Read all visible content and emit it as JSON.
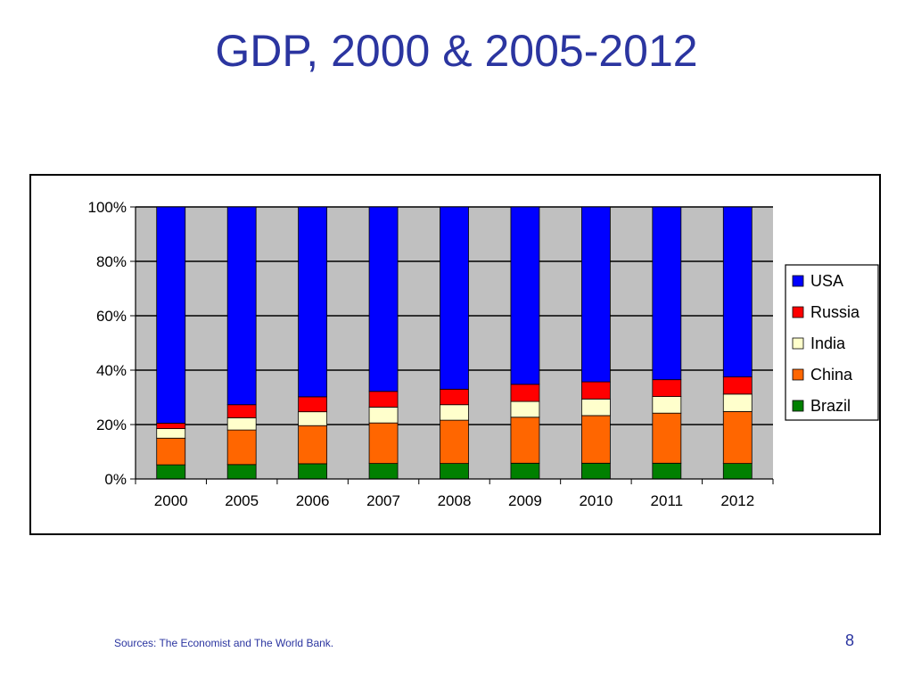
{
  "slide": {
    "title": "GDP, 2000 & 2005-2012",
    "source": "Sources:  The Economist and The World Bank.",
    "page_number": "8"
  },
  "chart_data": {
    "type": "bar",
    "stacked": "percent",
    "title": "",
    "xlabel": "",
    "ylabel": "",
    "ylim": [
      0,
      100
    ],
    "yticks": [
      "0%",
      "20%",
      "40%",
      "60%",
      "80%",
      "100%"
    ],
    "grid": true,
    "legend_position": "right",
    "categories": [
      "2000",
      "2005",
      "2006",
      "2007",
      "2008",
      "2009",
      "2010",
      "2011",
      "2012"
    ],
    "series": [
      {
        "name": "Brazil",
        "color": "#008000",
        "values": [
          5.2,
          5.3,
          5.6,
          5.7,
          5.7,
          5.8,
          5.8,
          5.8,
          5.7
        ]
      },
      {
        "name": "China",
        "color": "#ff6600",
        "values": [
          9.8,
          12.7,
          14.0,
          14.9,
          15.9,
          16.9,
          17.5,
          18.4,
          19.1
        ]
      },
      {
        "name": "India",
        "color": "#ffffcc",
        "values": [
          3.5,
          4.5,
          5.1,
          5.8,
          5.7,
          5.8,
          6.1,
          6.1,
          6.4
        ]
      },
      {
        "name": "Russia",
        "color": "#ff0000",
        "values": [
          2.0,
          4.8,
          5.5,
          5.8,
          5.7,
          6.3,
          6.3,
          6.2,
          6.3
        ]
      },
      {
        "name": "USA",
        "color": "#0000ff",
        "values": [
          79.5,
          72.7,
          69.8,
          67.8,
          67.0,
          65.2,
          64.3,
          63.5,
          62.5
        ]
      }
    ]
  }
}
